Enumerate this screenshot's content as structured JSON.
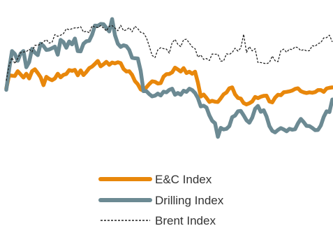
{
  "chart_data": {
    "type": "line",
    "title": "",
    "xlabel": "",
    "ylabel": "",
    "grid": false,
    "axes_visible": false,
    "legend_position": "bottom-center",
    "x_points": 115,
    "ylim": [
      35,
      100
    ],
    "series": [
      {
        "name": "E&C Index",
        "color": "#e8870b",
        "style": "solid-thick",
        "values": [
          63.6,
          69.5,
          69.3,
          69.2,
          71.3,
          69.9,
          68.5,
          70.2,
          68.1,
          71.3,
          72.2,
          70.5,
          68.6,
          65.1,
          68.8,
          67.9,
          67.3,
          68.1,
          70.2,
          68.6,
          69.7,
          70.1,
          71.8,
          71.5,
          71.9,
          69.5,
          71.7,
          69.6,
          71.0,
          72.7,
          73.4,
          74.6,
          75.9,
          73.5,
          74.4,
          75.5,
          74.2,
          75.2,
          74.8,
          75.3,
          74.9,
          72.3,
          71.2,
          71.3,
          69.7,
          66.9,
          65.5,
          63.2,
          62.6,
          64.1,
          65.6,
          66.8,
          66.6,
          65.8,
          66.0,
          68.9,
          70.0,
          70.1,
          70.8,
          72.9,
          72.1,
          71.2,
          72.7,
          70.5,
          71.1,
          70.2,
          71.1,
          66.2,
          60.0,
          60.9,
          59.4,
          57.6,
          58.1,
          57.7,
          57.6,
          59.2,
          61.0,
          61.8,
          63.7,
          64.1,
          61.0,
          59.4,
          59.1,
          57.1,
          56.5,
          57.0,
          57.8,
          59.8,
          59.3,
          59.9,
          60.3,
          60.4,
          57.8,
          57.4,
          59.5,
          60.8,
          60.6,
          61.9,
          62.1,
          62.3,
          62.7,
          63.4,
          63.7,
          62.4,
          61.9,
          61.6,
          61.9,
          61.7,
          62.0,
          62.9,
          62.9,
          62.1,
          63.6,
          63.9,
          64.1
        ]
      },
      {
        "name": "Drilling Index",
        "color": "#6c8a93",
        "style": "solid-thick",
        "values": [
          63.0,
          72.2,
          80.3,
          79.0,
          76.0,
          79.2,
          80.3,
          73.1,
          75.4,
          81.3,
          79.6,
          78.5,
          83.6,
          82.6,
          80.8,
          81.0,
          81.6,
          82.3,
          78.7,
          85.3,
          84.3,
          81.8,
          84.6,
          83.3,
          85.9,
          80.3,
          80.2,
          83.6,
          84.7,
          84.9,
          87.6,
          91.7,
          91.6,
          92.4,
          92.3,
          90.7,
          89.1,
          94.6,
          87.4,
          83.6,
          82.2,
          82.9,
          82.5,
          80.8,
          77.3,
          77.1,
          77.0,
          71.5,
          62.4,
          62.4,
          61.1,
          60.1,
          60.4,
          61.3,
          60.5,
          62.2,
          61.9,
          63.0,
          63.5,
          60.8,
          61.6,
          60.8,
          62.6,
          62.1,
          63.5,
          62.9,
          61.6,
          59.3,
          55.6,
          55.9,
          55.1,
          51.6,
          49.2,
          48.1,
          42.0,
          46.0,
          45.3,
          45.6,
          46.8,
          50.8,
          51.5,
          53.4,
          53.6,
          51.6,
          49.4,
          48.3,
          50.6,
          54.5,
          55.8,
          53.2,
          53.9,
          51.1,
          46.8,
          44.7,
          44.0,
          45.1,
          45.9,
          45.3,
          44.5,
          45.6,
          45.2,
          45.4,
          48.0,
          50.0,
          48.6,
          46.9,
          46.8,
          46.0,
          45.0,
          45.1,
          47.1,
          50.9,
          53.4,
          53.1,
          58.7
        ]
      },
      {
        "name": "Brent Index",
        "color": "#222222",
        "style": "dashed-thin",
        "values": [
          67.1,
          74.0,
          77.4,
          74.7,
          77.1,
          79.6,
          79.9,
          80.1,
          81.1,
          80.0,
          82.9,
          82.9,
          83.4,
          84.5,
          85.4,
          83.9,
          84.2,
          87.7,
          86.9,
          87.4,
          88.1,
          90.3,
          89.8,
          90.3,
          90.7,
          90.7,
          91.2,
          88.8,
          89.2,
          88.5,
          91.6,
          91.0,
          90.8,
          91.7,
          90.6,
          89.3,
          91.4,
          91.7,
          90.6,
          89.4,
          91.8,
          89.4,
          89.8,
          90.8,
          88.9,
          91.4,
          90.3,
          88.7,
          88.3,
          86.3,
          82.5,
          78.4,
          77.4,
          80.9,
          81.8,
          81.4,
          81.2,
          79.4,
          84.1,
          85.5,
          83.3,
          82.3,
          85.4,
          85.6,
          83.9,
          82.2,
          81.4,
          77.6,
          78.6,
          76.6,
          77.0,
          76.1,
          79.0,
          78.9,
          78.9,
          75.8,
          75.9,
          79.1,
          78.8,
          79.7,
          81.6,
          80.3,
          81.7,
          87.8,
          79.7,
          82.3,
          80.4,
          81.4,
          75.2,
          75.2,
          74.9,
          74.7,
          75.2,
          78.1,
          76.0,
          75.6,
          80.5,
          81.2,
          79.8,
          81.2,
          81.0,
          82.2,
          81.8,
          80.5,
          81.0,
          80.4,
          80.5,
          82.7,
          82.5,
          83.6,
          84.1,
          86.2,
          86.3,
          87.4,
          84.4
        ]
      }
    ]
  }
}
